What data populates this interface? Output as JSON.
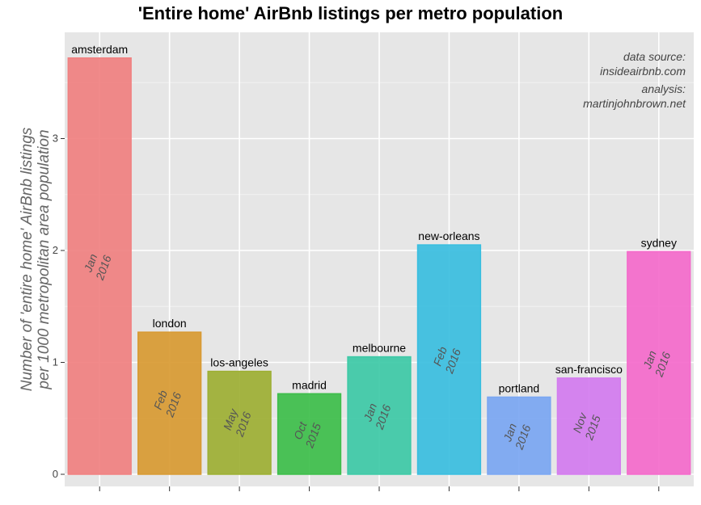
{
  "chart_data": {
    "type": "bar",
    "title": "'Entire home' AirBnb listings per metro population",
    "ylabel_lines": [
      "Number of 'entire home' AirBnb listings",
      "per 1000 metropolitan area population"
    ],
    "categories": [
      "amsterdam",
      "london",
      "los-angeles",
      "madrid",
      "melbourne",
      "new-orleans",
      "portland",
      "san-francisco",
      "sydney"
    ],
    "values": [
      3.72,
      1.27,
      0.92,
      0.72,
      1.05,
      2.05,
      0.69,
      0.86,
      1.99
    ],
    "date_month": [
      "Jan",
      "Feb",
      "May",
      "Oct",
      "Jan",
      "Feb",
      "Jan",
      "Nov",
      "Jan"
    ],
    "date_year": [
      "2016",
      "2016",
      "2016",
      "2015",
      "2016",
      "2016",
      "2016",
      "2015",
      "2016"
    ],
    "colors": [
      "#F08080",
      "#D89A32",
      "#9DAF33",
      "#3DBE4A",
      "#3DC9A6",
      "#39BEDF",
      "#7AA6F2",
      "#D37BEF",
      "#F46ACB"
    ],
    "yticks": [
      0,
      1,
      2,
      3
    ],
    "ylim": [
      0,
      3.9
    ],
    "grid": true,
    "annotations": [
      "data source:",
      "insideairbnb.com",
      "analysis:",
      "martinjohnbrown.net"
    ]
  }
}
